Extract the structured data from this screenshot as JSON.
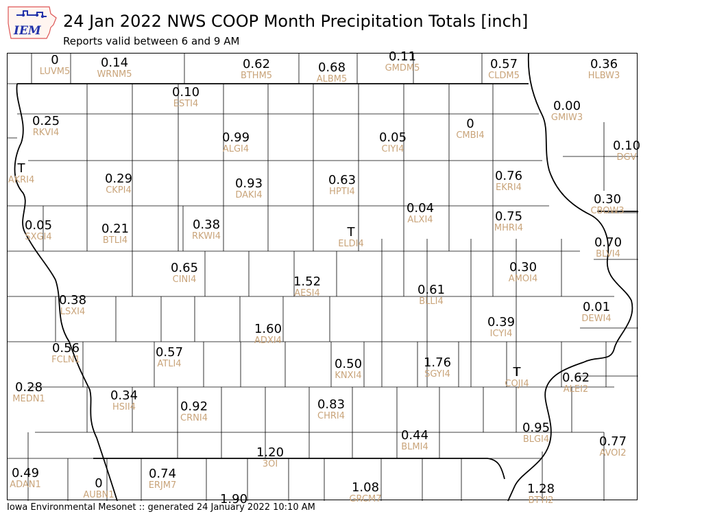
{
  "header": {
    "logo_text": "IEM",
    "title": "24 Jan 2022 NWS COOP Month Precipitation Totals [inch]",
    "subtitle": "Reports valid between 6 and 9 AM"
  },
  "footer": {
    "text": "Iowa Environmental Mesonet :: generated 24 January 2022 10:10 AM"
  },
  "colors": {
    "station_id": "#c9a47a",
    "value": "#000000",
    "border": "#000000",
    "county_line": "#000000"
  },
  "stations": [
    {
      "value": "0",
      "id": "LUVM5"
    },
    {
      "value": "0.14",
      "id": "WRNM5"
    },
    {
      "value": "0.62",
      "id": "BTHM5"
    },
    {
      "value": "0.68",
      "id": "ALBM5"
    },
    {
      "value": "0.11",
      "id": "GMDM5"
    },
    {
      "value": "0.57",
      "id": "CLDM5"
    },
    {
      "value": "0.36",
      "id": "HLBW3"
    },
    {
      "value": "0.10",
      "id": "ESTI4"
    },
    {
      "value": "0.25",
      "id": "RKVI4"
    },
    {
      "value": "0.00",
      "id": "GMIW3"
    },
    {
      "value": "0.99",
      "id": "ALGI4"
    },
    {
      "value": "0.05",
      "id": "CIYI4"
    },
    {
      "value": "0",
      "id": "CMBI4"
    },
    {
      "value": "0.10",
      "id": "DGV"
    },
    {
      "value": "T",
      "id": "AKRI4"
    },
    {
      "value": "0.29",
      "id": "CKPI4"
    },
    {
      "value": "0.93",
      "id": "DAKI4"
    },
    {
      "value": "0.63",
      "id": "HPTI4"
    },
    {
      "value": "0.76",
      "id": "EKRI4"
    },
    {
      "value": "0.30",
      "id": "CBOW3"
    },
    {
      "value": "0.04",
      "id": "ALXI4"
    },
    {
      "value": "0.05",
      "id": "SXGI4"
    },
    {
      "value": "0.21",
      "id": "BTLI4"
    },
    {
      "value": "0.38",
      "id": "RKWI4"
    },
    {
      "value": "T",
      "id": "ELDI4"
    },
    {
      "value": "0.75",
      "id": "MHRI4"
    },
    {
      "value": "0.70",
      "id": "BLVI4"
    },
    {
      "value": "0.65",
      "id": "CINI4"
    },
    {
      "value": "1.52",
      "id": "AESI4"
    },
    {
      "value": "0.61",
      "id": "BLLI4"
    },
    {
      "value": "0.30",
      "id": "AMOI4"
    },
    {
      "value": "0.38",
      "id": "LSXI4"
    },
    {
      "value": "0.01",
      "id": "DEWI4"
    },
    {
      "value": "1.60",
      "id": "ADXI4"
    },
    {
      "value": "0.39",
      "id": "ICYI4"
    },
    {
      "value": "0.56",
      "id": "FCLN1"
    },
    {
      "value": "0.57",
      "id": "ATLI4"
    },
    {
      "value": "0.50",
      "id": "KNXI4"
    },
    {
      "value": "1.76",
      "id": "SGYI4"
    },
    {
      "value": "T",
      "id": "COJI4"
    },
    {
      "value": "0.62",
      "id": "ALEI2"
    },
    {
      "value": "0.28",
      "id": "MEDN1"
    },
    {
      "value": "0.34",
      "id": "HSII4"
    },
    {
      "value": "0.92",
      "id": "CRNI4"
    },
    {
      "value": "0.83",
      "id": "CHRI4"
    },
    {
      "value": "0.44",
      "id": "BLMI4"
    },
    {
      "value": "0.95",
      "id": "BLGI4"
    },
    {
      "value": "0.77",
      "id": "AVOI2"
    },
    {
      "value": "1.20",
      "id": "3OI"
    },
    {
      "value": "0.49",
      "id": "ADAN1"
    },
    {
      "value": "0",
      "id": "AUBN1"
    },
    {
      "value": "0.74",
      "id": "ERJM7"
    },
    {
      "value": "1.08",
      "id": "GRCM7"
    },
    {
      "value": "1.28",
      "id": "BTYI2"
    },
    {
      "value": "1.90",
      "id": ""
    }
  ]
}
